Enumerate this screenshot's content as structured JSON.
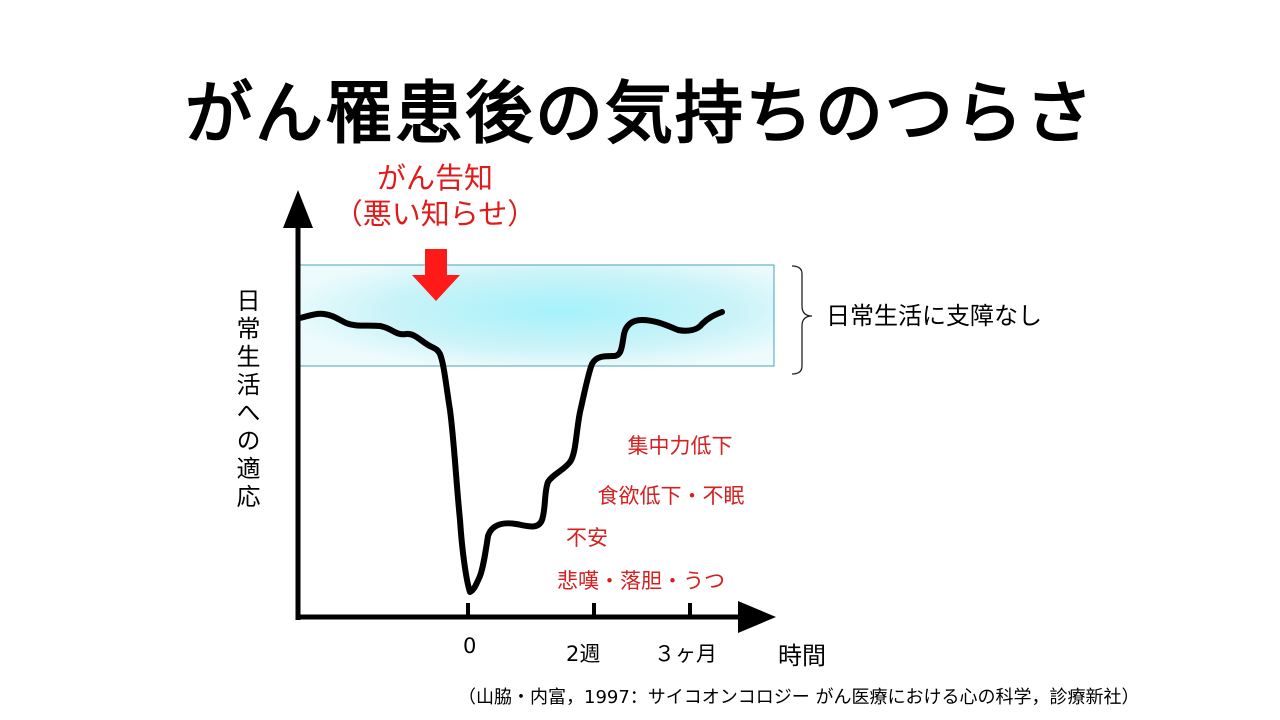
{
  "title": "がん罹患後の気持ちのつらさ",
  "notice": {
    "line1": "がん告知",
    "line2": "（悪い知らせ）"
  },
  "y_axis_label": "日常生活への適応",
  "x_axis_label": "時間",
  "x_ticks": [
    "0",
    "2週",
    "３ヶ月"
  ],
  "normal_range_label": "日常生活に支障なし",
  "symptoms": [
    "集中力低下",
    "食欲低下・不眠",
    "不安",
    "悲嘆・落胆・うつ"
  ],
  "citation": "（山脇・内富，1997：サイコオンコロジー がん医療における心の科学，診療新社）",
  "colors": {
    "band": "#b8eef8",
    "band_border": "#4a9fb8",
    "arrow": "#ff1a1a",
    "symptom_text": "#d61f1f",
    "curve": "#000000"
  }
}
